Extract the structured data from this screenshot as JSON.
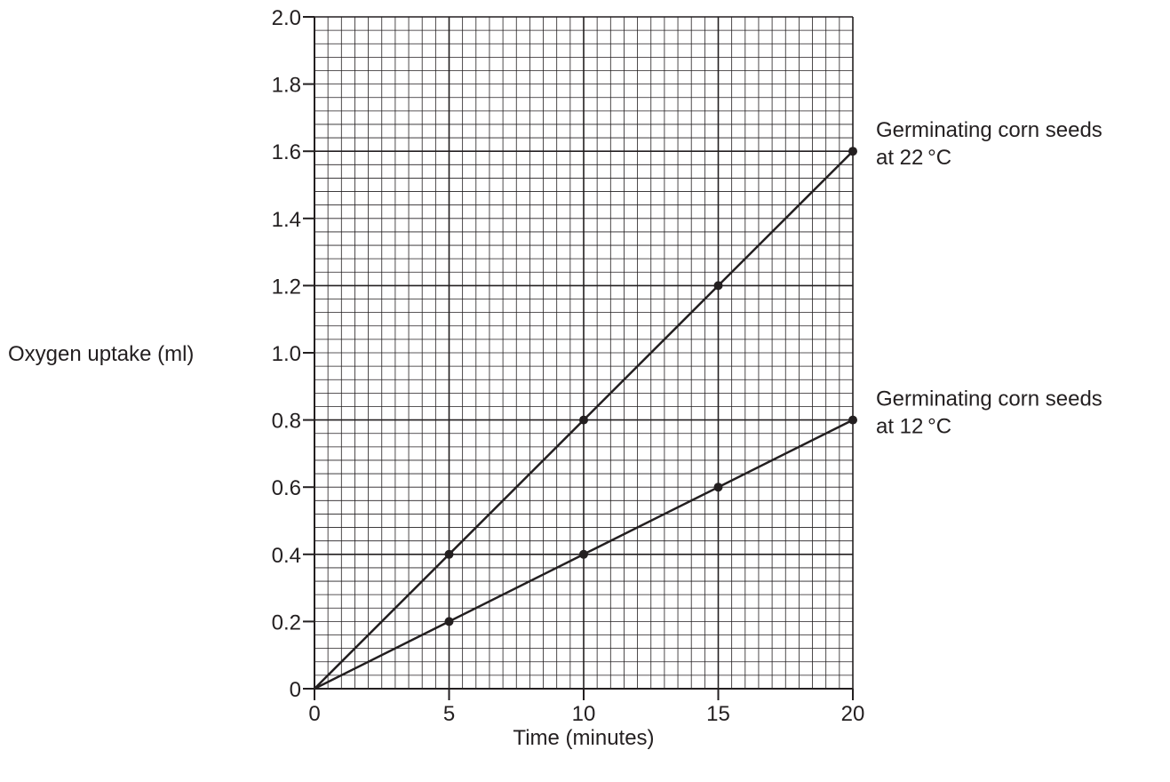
{
  "chart_data": {
    "type": "line",
    "title": "",
    "xlabel": "Time (minutes)",
    "ylabel": "Oxygen uptake (ml)",
    "xlim": [
      0,
      20
    ],
    "ylim": [
      0,
      2.0
    ],
    "x_ticks": [
      0,
      5,
      10,
      15,
      20
    ],
    "x_tick_labels": [
      "0",
      "5",
      "10",
      "15",
      "20"
    ],
    "y_ticks": [
      0,
      0.2,
      0.4,
      0.6,
      0.8,
      1.0,
      1.2,
      1.4,
      1.6,
      1.8,
      2.0
    ],
    "y_tick_labels": [
      "0",
      "0.2",
      "0.4",
      "0.6",
      "0.8",
      "1.0",
      "1.2",
      "1.4",
      "1.6",
      "1.8",
      "2.0"
    ],
    "grid": true,
    "legend": "inline labels at line ends",
    "line_color": "#231f20",
    "series": [
      {
        "name_lines": [
          "Germinating corn seeds",
          "at 22 °C"
        ],
        "x": [
          0,
          5,
          10,
          15,
          20
        ],
        "values": [
          0,
          0.4,
          0.8,
          1.2,
          1.6
        ]
      },
      {
        "name_lines": [
          "Germinating corn seeds",
          "at 12 °C"
        ],
        "x": [
          0,
          5,
          10,
          15,
          20
        ],
        "values": [
          0,
          0.2,
          0.4,
          0.6,
          0.8
        ]
      }
    ]
  }
}
